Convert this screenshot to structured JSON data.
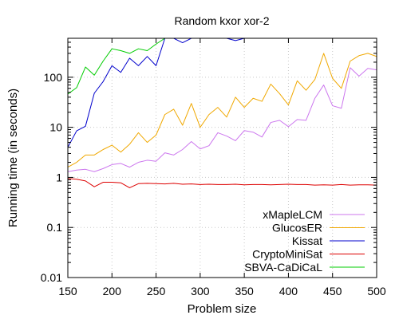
{
  "chart_data": {
    "type": "line",
    "title": "Random kxor xor-2",
    "xlabel": "Problem size",
    "ylabel": "Running time (in seconds)",
    "xlim": [
      150,
      500
    ],
    "ylim": [
      0.01,
      600
    ],
    "y_scale": "log",
    "grid": true,
    "legend_position": "bottom-right",
    "x_ticks": [
      {
        "value": 150,
        "label": "150"
      },
      {
        "value": 200,
        "label": "200"
      },
      {
        "value": 250,
        "label": "250"
      },
      {
        "value": 300,
        "label": "300"
      },
      {
        "value": 350,
        "label": "350"
      },
      {
        "value": 400,
        "label": "400"
      },
      {
        "value": 450,
        "label": "450"
      },
      {
        "value": 500,
        "label": "500"
      }
    ],
    "y_ticks": [
      {
        "value": 0.01,
        "label": "0.01"
      },
      {
        "value": 0.1,
        "label": "0.1"
      },
      {
        "value": 1,
        "label": "1"
      },
      {
        "value": 10,
        "label": "10"
      },
      {
        "value": 100,
        "label": "100"
      }
    ],
    "series": [
      {
        "name": "xMapleLCM",
        "color": "#cc77ee",
        "x": [
          150,
          160,
          170,
          180,
          190,
          200,
          210,
          220,
          230,
          240,
          250,
          260,
          270,
          280,
          290,
          300,
          310,
          320,
          330,
          340,
          350,
          360,
          370,
          380,
          390,
          400,
          410,
          420,
          430,
          440,
          450,
          460,
          470,
          480,
          490,
          500
        ],
        "y": [
          1.3,
          1.4,
          1.45,
          1.3,
          1.5,
          1.8,
          1.9,
          1.6,
          2.0,
          2.2,
          2.1,
          3.1,
          2.8,
          3.6,
          5.2,
          3.7,
          4.3,
          7.8,
          6.7,
          5.4,
          8.6,
          8.0,
          6.4,
          12.5,
          13.8,
          10.3,
          14.3,
          13.8,
          38.0,
          70.0,
          27.0,
          24.0,
          155.0,
          105.0,
          150.0,
          140.0
        ]
      },
      {
        "name": "GlucosER",
        "color": "#f0a800",
        "x": [
          150,
          160,
          170,
          180,
          190,
          200,
          210,
          220,
          230,
          240,
          250,
          260,
          270,
          280,
          290,
          300,
          310,
          320,
          330,
          340,
          350,
          360,
          370,
          380,
          390,
          400,
          410,
          420,
          430,
          440,
          450,
          460,
          470,
          480,
          490,
          500
        ],
        "y": [
          1.6,
          2.0,
          2.8,
          2.8,
          3.6,
          4.4,
          3.2,
          4.6,
          7.8,
          5.0,
          7.0,
          18.0,
          23.0,
          11.0,
          30.0,
          10.0,
          18.0,
          25.0,
          16.0,
          40.0,
          25.0,
          38.0,
          33.0,
          73.0,
          47.0,
          28.0,
          85.0,
          55.0,
          90.0,
          300.0,
          95.0,
          60.0,
          210.0,
          270.0,
          300.0,
          260.0
        ]
      },
      {
        "name": "Kissat",
        "color": "#0000cc",
        "x": [
          150,
          160,
          170,
          180,
          190,
          200,
          210,
          220,
          230,
          240,
          250,
          260,
          270,
          280,
          290,
          300,
          310,
          320,
          330,
          340,
          350
        ],
        "y": [
          4.0,
          8.5,
          10.5,
          48.0,
          82.0,
          170.0,
          125.0,
          240.0,
          170.0,
          260.0,
          170.0,
          600.0,
          600.0,
          490.0,
          600.0,
          600.0,
          600.0,
          600.0,
          600.0,
          540.0,
          600.0
        ]
      },
      {
        "name": "CryptoMiniSat",
        "color": "#dd0000",
        "x": [
          150,
          160,
          170,
          180,
          190,
          200,
          210,
          220,
          230,
          240,
          250,
          260,
          270,
          280,
          290,
          300,
          310,
          320,
          330,
          340,
          350,
          360,
          370,
          380,
          390,
          400,
          410,
          420,
          430,
          440,
          450,
          460,
          470,
          480,
          490,
          500
        ],
        "y": [
          0.95,
          0.92,
          0.85,
          0.65,
          0.8,
          0.8,
          0.78,
          0.62,
          0.75,
          0.76,
          0.75,
          0.74,
          0.76,
          0.73,
          0.74,
          0.72,
          0.73,
          0.72,
          0.72,
          0.73,
          0.71,
          0.72,
          0.72,
          0.71,
          0.72,
          0.73,
          0.72,
          0.72,
          0.7,
          0.71,
          0.7,
          0.72,
          0.7,
          0.71,
          0.71,
          0.7
        ]
      },
      {
        "name": "SBVA-CaDiCaL",
        "color": "#00cc00",
        "x": [
          150,
          160,
          170,
          180,
          190,
          200,
          210,
          220,
          230,
          240,
          250,
          260,
          270
        ],
        "y": [
          46.0,
          62.0,
          160.0,
          110.0,
          210.0,
          370.0,
          340.0,
          300.0,
          370.0,
          340.0,
          460.0,
          600.0,
          600.0
        ]
      }
    ]
  }
}
